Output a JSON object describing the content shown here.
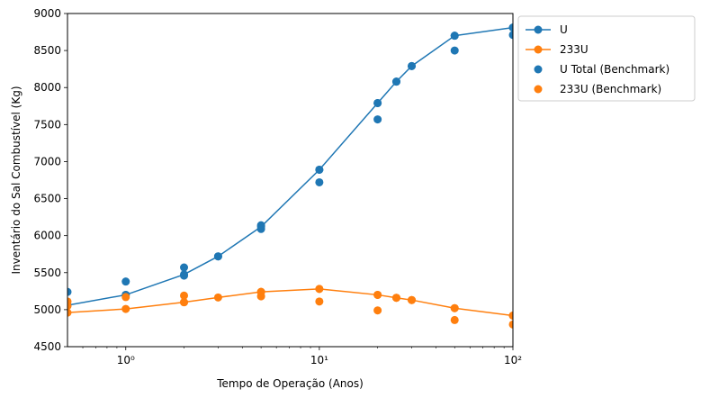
{
  "chart_data": {
    "type": "line",
    "title": "",
    "xlabel": "Tempo de Operação (Anos)",
    "ylabel": "Inventário do Sal Combustível (Kg)",
    "xscale": "log",
    "xlim": [
      0.5,
      100
    ],
    "ylim": [
      4500,
      9000
    ],
    "x_ticks": [
      {
        "value": 1,
        "label": "10⁰"
      },
      {
        "value": 10,
        "label": "10¹"
      },
      {
        "value": 100,
        "label": "10²"
      }
    ],
    "y_ticks": [
      4500,
      5000,
      5500,
      6000,
      6500,
      7000,
      7500,
      8000,
      8500,
      9000
    ],
    "grid": false,
    "legend_position": "outside-top-right",
    "series": [
      {
        "name": "U",
        "style": "line-marker",
        "color": "#1f77b4",
        "x": [
          0.5,
          1,
          2,
          3,
          5,
          10,
          20,
          25,
          30,
          50,
          100
        ],
        "y": [
          5060,
          5200,
          5475,
          5720,
          6120,
          6890,
          7790,
          8080,
          8290,
          8700,
          8810
        ]
      },
      {
        "name": "233U",
        "style": "line-marker",
        "color": "#ff7f0e",
        "x": [
          0.5,
          1,
          2,
          3,
          5,
          10,
          20,
          25,
          30,
          50,
          100
        ],
        "y": [
          4960,
          5010,
          5100,
          5165,
          5240,
          5280,
          5200,
          5160,
          5130,
          5020,
          4920
        ]
      },
      {
        "name": "U Total (Benchmark)",
        "style": "marker",
        "color": "#1f77b4",
        "x": [
          0.5,
          1,
          1,
          2,
          2,
          3,
          5,
          5,
          10,
          10,
          20,
          20,
          25,
          30,
          50,
          50,
          100,
          100
        ],
        "y": [
          5240,
          5380,
          5200,
          5570,
          5460,
          5720,
          6090,
          6140,
          6720,
          6890,
          7570,
          7790,
          8080,
          8290,
          8500,
          8700,
          8710,
          8810
        ]
      },
      {
        "name": "233U (Benchmark)",
        "style": "marker",
        "color": "#ff7f0e",
        "x": [
          0.5,
          0.5,
          1,
          2,
          2,
          5,
          5,
          10,
          10,
          20,
          20,
          25,
          30,
          50,
          50,
          100,
          100
        ],
        "y": [
          5110,
          5050,
          5170,
          5190,
          5100,
          5180,
          5240,
          5110,
          5280,
          4990,
          5200,
          5160,
          5130,
          4860,
          5020,
          4800,
          4920
        ]
      }
    ]
  }
}
